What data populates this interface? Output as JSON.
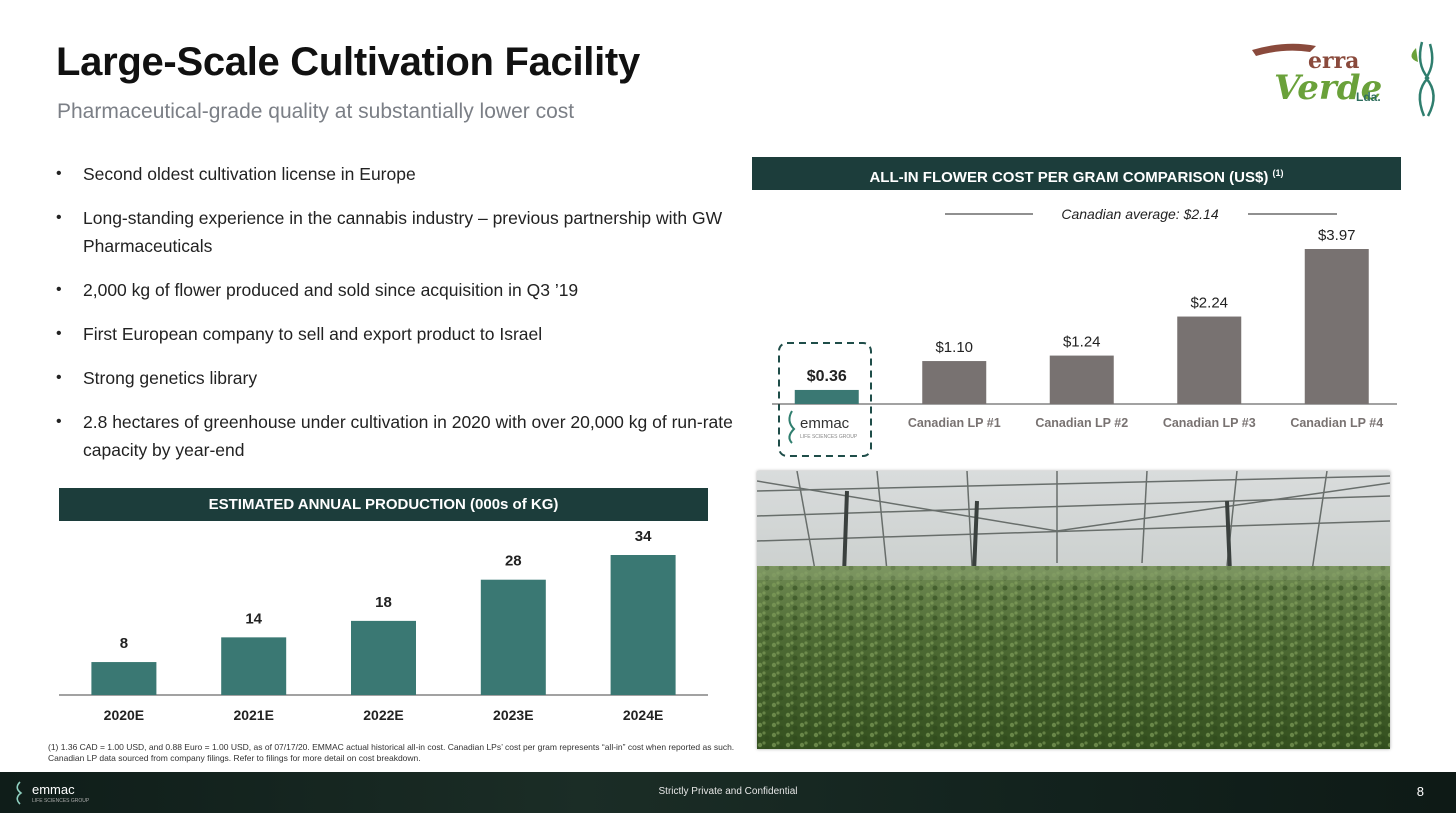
{
  "header": {
    "title": "Large-Scale Cultivation Facility",
    "subtitle": "Pharmaceutical-grade quality at substantially lower cost"
  },
  "logo": {
    "terra": "erra",
    "verde": "Verde",
    "lda": "Lda."
  },
  "bullets": [
    "Second oldest cultivation license in Europe",
    "Long-standing experience in the cannabis industry – previous partnership with GW Pharmaceuticals",
    "2,000 kg of flower produced and sold since acquisition in Q3 ’19",
    "First European company to sell and export product to Israel",
    "Strong genetics library",
    "2.8 hectares of greenhouse under cultivation in 2020 with over 20,000 kg of run-rate capacity by year-end"
  ],
  "cost_chart": {
    "header": "ALL-IN FLOWER COST PER GRAM COMPARISON (US$)",
    "header_note": "(1)",
    "average_label": "Canadian average: $2.14",
    "brand_label": "emmac",
    "brand_sub": "LIFE SCIENCES GROUP"
  },
  "production_chart": {
    "header": "ESTIMATED ANNUAL PRODUCTION (000s of KG)"
  },
  "chart_data": [
    {
      "type": "bar",
      "title": "ALL-IN FLOWER COST PER GRAM COMPARISON (US$)",
      "categories": [
        "emmac",
        "Canadian LP #1",
        "Canadian LP #2",
        "Canadian LP #3",
        "Canadian LP #4"
      ],
      "values": [
        0.36,
        1.1,
        1.24,
        2.24,
        3.97
      ],
      "data_labels": [
        "$0.36",
        "$1.10",
        "$1.24",
        "$2.24",
        "$3.97"
      ],
      "reference_line": {
        "label": "Canadian average: $2.14",
        "value": 2.14
      },
      "ylim": [
        0,
        3.97
      ],
      "colors": {
        "highlight": "#3a7873",
        "default": "#787271"
      },
      "grid": false
    },
    {
      "type": "bar",
      "title": "ESTIMATED ANNUAL PRODUCTION (000s of KG)",
      "categories": [
        "2020E",
        "2021E",
        "2022E",
        "2023E",
        "2024E"
      ],
      "values": [
        8,
        14,
        18,
        28,
        34
      ],
      "ylim": [
        0,
        34
      ],
      "colors": {
        "default": "#3a7873"
      },
      "grid": false
    }
  ],
  "footnote": "(1) 1.36 CAD = 1.00 USD, and 0.88 Euro = 1.00 USD, as of 07/17/20. EMMAC actual historical all-in cost. Canadian LPs’ cost per gram represents “all-in” cost when reported as such. Canadian LP data sourced from company filings. Refer to filings for more detail on cost breakdown.",
  "footer": {
    "confidential": "Strictly Private and Confidential",
    "page_number": "8",
    "brand": "emmac",
    "brand_sub": "LIFE SCIENCES GROUP"
  }
}
